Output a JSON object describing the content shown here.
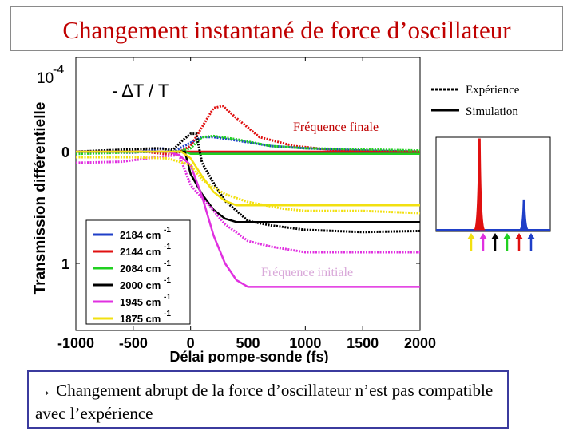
{
  "slide": {
    "title": "Changement instantané de force d’oscillateur",
    "conclusion": "→ Changement abrupt de la force d’oscillateur n’est pas compatible avec l’expérience"
  },
  "chart_data": [
    {
      "type": "line",
      "title": "- ΔT / T",
      "xlabel": "Délai pompe-sonde (fs)",
      "ylabel": "Transmission différentielle",
      "y_exponent_label": "10",
      "y_exponent": "-4",
      "xlim": [
        -1000,
        2000
      ],
      "ylim": [
        1.6,
        -0.4
      ],
      "x_tick_labels": [
        "-1000",
        "-500",
        "0",
        "500",
        "1000",
        "1500",
        "2000"
      ],
      "x_ticks": [
        -1000,
        -500,
        0,
        500,
        1000,
        1500,
        2000
      ],
      "y_tick_labels": [
        "0",
        "1"
      ],
      "y_ticks": [
        0,
        1
      ],
      "grid": false,
      "legend_style": {
        "entries": [
          {
            "label": "Expérience",
            "style": "dotted"
          },
          {
            "label": "Simulation",
            "style": "solid"
          }
        ],
        "placement": "top-right"
      },
      "annotations": {
        "final": "Fréquence finale",
        "initial": "Fréquence initiale"
      },
      "series": [
        {
          "name": "2184 cm",
          "exponent": "-1",
          "color": "#1f3fc8",
          "sim": [
            [
              -1000,
              0.0
            ],
            [
              -80,
              0.0
            ],
            [
              0,
              0.01
            ],
            [
              2000,
              0.01
            ]
          ],
          "exp": [
            [
              -1000,
              0.0
            ],
            [
              -500,
              0.01
            ],
            [
              -250,
              -0.03
            ],
            [
              -150,
              0.0
            ],
            [
              0,
              -0.08
            ],
            [
              100,
              -0.13
            ],
            [
              200,
              -0.13
            ],
            [
              400,
              -0.1
            ],
            [
              700,
              -0.05
            ],
            [
              1000,
              -0.03
            ],
            [
              1500,
              -0.01
            ],
            [
              2000,
              0.0
            ]
          ]
        },
        {
          "name": "2144 cm",
          "exponent": "-1",
          "color": "#e01010",
          "sim": [
            [
              -1000,
              0.0
            ],
            [
              2000,
              0.0
            ]
          ],
          "exp": [
            [
              -1000,
              0.0
            ],
            [
              -400,
              0.0
            ],
            [
              -150,
              0.03
            ],
            [
              0,
              -0.05
            ],
            [
              100,
              -0.22
            ],
            [
              200,
              -0.39
            ],
            [
              280,
              -0.41
            ],
            [
              400,
              -0.3
            ],
            [
              600,
              -0.13
            ],
            [
              900,
              -0.05
            ],
            [
              1300,
              -0.01
            ],
            [
              2000,
              0.0
            ]
          ]
        },
        {
          "name": "2084 cm",
          "exponent": "-1",
          "color": "#20d020",
          "sim": [
            [
              -1000,
              0.0
            ],
            [
              -50,
              0.0
            ],
            [
              0,
              0.02
            ],
            [
              2000,
              0.02
            ]
          ],
          "exp": [
            [
              -1000,
              0.02
            ],
            [
              -300,
              0.0
            ],
            [
              -100,
              0.0
            ],
            [
              0,
              -0.03
            ],
            [
              100,
              -0.13
            ],
            [
              200,
              -0.14
            ],
            [
              400,
              -0.11
            ],
            [
              700,
              -0.05
            ],
            [
              1000,
              -0.03
            ],
            [
              1500,
              -0.02
            ],
            [
              2000,
              -0.01
            ]
          ]
        },
        {
          "name": "2000 cm",
          "exponent": "-1",
          "color": "#000000",
          "sim": [
            [
              -1000,
              0.0
            ],
            [
              -50,
              0.0
            ],
            [
              0,
              0.2
            ],
            [
              100,
              0.38
            ],
            [
              200,
              0.52
            ],
            [
              300,
              0.6
            ],
            [
              400,
              0.63
            ],
            [
              2000,
              0.63
            ]
          ],
          "exp": [
            [
              -1000,
              0.0
            ],
            [
              -300,
              -0.03
            ],
            [
              -150,
              -0.02
            ],
            [
              -70,
              -0.1
            ],
            [
              0,
              -0.16
            ],
            [
              50,
              -0.16
            ],
            [
              100,
              0.1
            ],
            [
              200,
              0.28
            ],
            [
              300,
              0.44
            ],
            [
              500,
              0.62
            ],
            [
              700,
              0.66
            ],
            [
              1000,
              0.7
            ],
            [
              1500,
              0.72
            ],
            [
              2000,
              0.71
            ]
          ]
        },
        {
          "name": "1945 cm",
          "exponent": "-1",
          "color": "#e030e0",
          "sim": [
            [
              -1000,
              0.0
            ],
            [
              -200,
              0.0
            ],
            [
              -100,
              0.03
            ],
            [
              0,
              0.12
            ],
            [
              100,
              0.4
            ],
            [
              200,
              0.75
            ],
            [
              300,
              1.0
            ],
            [
              400,
              1.15
            ],
            [
              500,
              1.21
            ],
            [
              2000,
              1.21
            ]
          ],
          "exp": [
            [
              -1000,
              0.1
            ],
            [
              -600,
              0.09
            ],
            [
              -300,
              0.05
            ],
            [
              -100,
              0.03
            ],
            [
              0,
              0.3
            ],
            [
              150,
              0.47
            ],
            [
              300,
              0.65
            ],
            [
              500,
              0.8
            ],
            [
              700,
              0.85
            ],
            [
              1000,
              0.9
            ],
            [
              1500,
              0.9
            ],
            [
              2000,
              0.9
            ]
          ]
        },
        {
          "name": "1875 cm",
          "exponent": "-1",
          "color": "#f2e010",
          "sim": [
            [
              -1000,
              0.0
            ],
            [
              -80,
              0.0
            ],
            [
              0,
              0.06
            ],
            [
              100,
              0.22
            ],
            [
              200,
              0.36
            ],
            [
              300,
              0.44
            ],
            [
              400,
              0.48
            ],
            [
              2000,
              0.48
            ]
          ],
          "exp": [
            [
              -1000,
              0.05
            ],
            [
              -500,
              0.05
            ],
            [
              -200,
              0.06
            ],
            [
              0,
              0.12
            ],
            [
              100,
              0.25
            ],
            [
              200,
              0.32
            ],
            [
              300,
              0.38
            ],
            [
              500,
              0.45
            ],
            [
              800,
              0.51
            ],
            [
              1000,
              0.53
            ],
            [
              1500,
              0.53
            ],
            [
              2000,
              0.55
            ]
          ]
        }
      ]
    },
    {
      "type": "line",
      "title": "",
      "xlabel": "",
      "ylabel": "",
      "peaks": [
        {
          "color": "#e01010",
          "position": 0.38,
          "height": 1.0
        },
        {
          "color": "#1f3fc8",
          "position": 0.77,
          "height": 0.33
        }
      ],
      "arrows": [
        "#f2e010",
        "#e030e0",
        "#000000",
        "#20d020",
        "#e01010",
        "#1f3fc8"
      ]
    }
  ]
}
